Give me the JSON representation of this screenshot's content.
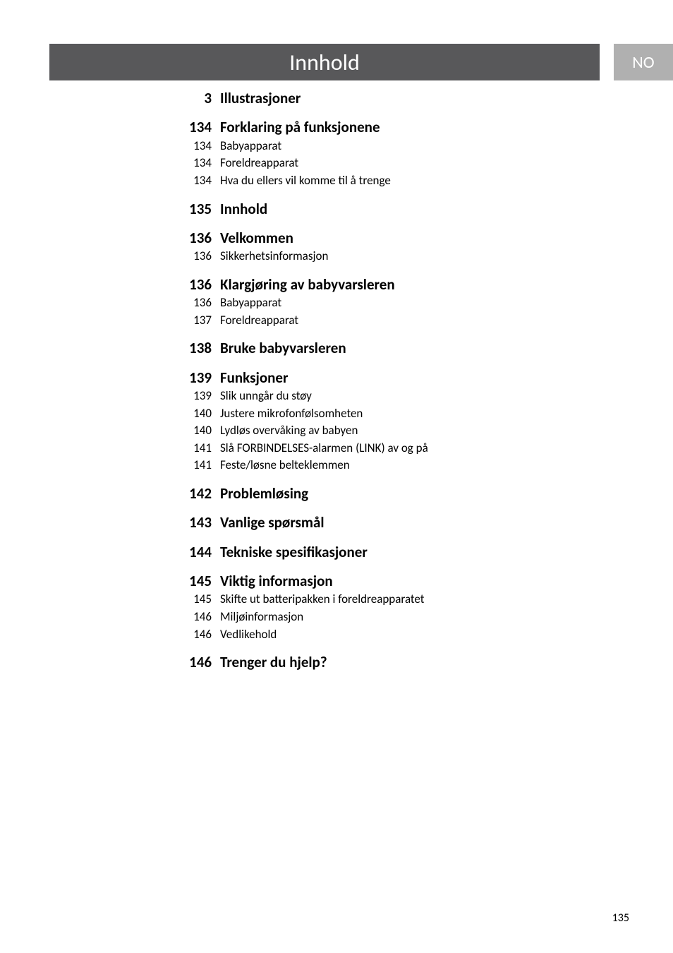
{
  "header": {
    "title": "Innhold",
    "lang_tab": "NO"
  },
  "toc": [
    {
      "page": "3",
      "title": "Illustrasjoner",
      "children": []
    },
    {
      "page": "134",
      "title": "Forklaring på funksjonene",
      "children": [
        {
          "page": "134",
          "title": "Babyapparat"
        },
        {
          "page": "134",
          "title": "Foreldreapparat"
        },
        {
          "page": "134",
          "title": "Hva du ellers vil komme til å trenge"
        }
      ]
    },
    {
      "page": "135",
      "title": "Innhold",
      "children": []
    },
    {
      "page": "136",
      "title": "Velkommen",
      "children": [
        {
          "page": "136",
          "title": "Sikkerhetsinformasjon"
        }
      ]
    },
    {
      "page": "136",
      "title": "Klargjøring av babyvarsleren",
      "children": [
        {
          "page": "136",
          "title": "Babyapparat"
        },
        {
          "page": "137",
          "title": "Foreldreapparat"
        }
      ]
    },
    {
      "page": "138",
      "title": "Bruke babyvarsleren",
      "children": []
    },
    {
      "page": "139",
      "title": "Funksjoner",
      "children": [
        {
          "page": "139",
          "title": "Slik unngår du støy"
        },
        {
          "page": "140",
          "title": "Justere mikrofonfølsomheten"
        },
        {
          "page": "140",
          "title": "Lydløs overvåking av babyen"
        },
        {
          "page": "141",
          "title": "Slå FORBINDELSES-alarmen (LINK) av og på"
        },
        {
          "page": "141",
          "title": "Feste/løsne belteklemmen"
        }
      ]
    },
    {
      "page": "142",
      "title": "Problemløsing",
      "children": []
    },
    {
      "page": "143",
      "title": "Vanlige spørsmål",
      "children": []
    },
    {
      "page": "144",
      "title": "Tekniske spesifikasjoner",
      "children": []
    },
    {
      "page": "145",
      "title": "Viktig informasjon",
      "children": [
        {
          "page": "145",
          "title": "Skifte ut batteripakken i foreldreapparatet"
        },
        {
          "page": "146",
          "title": "Miljøinformasjon"
        },
        {
          "page": "146",
          "title": "Vedlikehold"
        }
      ]
    },
    {
      "page": "146",
      "title": "Trenger du hjelp?",
      "children": []
    }
  ],
  "page_number": "135",
  "colors": {
    "header_bg": "#58585a",
    "header_text": "#ffffff",
    "tab_bg": "#b0b0b0",
    "tab_text": "#ffffff",
    "body_bg": "#ffffff",
    "text": "#000000"
  },
  "typography": {
    "header_fontsize": 32,
    "h1_fontsize": 21,
    "h2_fontsize": 17,
    "pagenum_fontsize": 16,
    "font_family": "Gill Sans"
  }
}
